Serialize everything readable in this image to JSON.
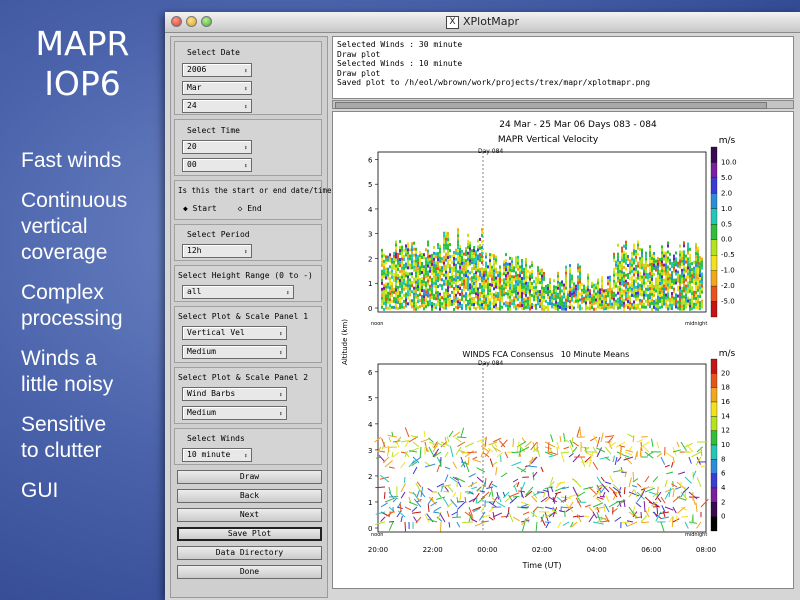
{
  "slide": {
    "title_line1": "MAPR",
    "title_line2": "IOP6",
    "bullets": [
      "Fast winds",
      "Continuous\nvertical\ncoverage",
      "Complex\nprocessing",
      "Winds a\nlittle noisy",
      "Sensitive\nto clutter",
      "GUI"
    ]
  },
  "window": {
    "title": "XPlotMapr",
    "icon": "x-window-icon"
  },
  "panel": {
    "select_date": {
      "label": "Select Date",
      "year": "2006",
      "month": "Mar",
      "day": "24"
    },
    "select_time": {
      "label": "Select Time",
      "hour": "20",
      "minute": "00"
    },
    "start_end": {
      "label": "Is this the start or end date/time?",
      "start": "Start",
      "end": "End",
      "selected": "Start"
    },
    "select_period": {
      "label": "Select Period",
      "value": "12h"
    },
    "height_range": {
      "label": "Select Height Range (0 to -)",
      "value": "all"
    },
    "plot_panel_1": {
      "label": "Select Plot & Scale Panel 1",
      "plot": "Vertical Vel",
      "scale": "Medium"
    },
    "plot_panel_2": {
      "label": "Select Plot & Scale Panel 2",
      "plot": "Wind Barbs",
      "scale": "Medium"
    },
    "select_winds": {
      "label": "Select Winds",
      "value": "10 minute"
    },
    "buttons": {
      "draw": "Draw",
      "back": "Back",
      "next": "Next",
      "save_plot": "Save Plot",
      "data_directory": "Data Directory",
      "done": "Done"
    }
  },
  "log": [
    "Selected Winds : 30 minute",
    "Draw plot",
    "Selected Winds : 10 minute",
    "Draw plot",
    "Saved plot to /h/eol/wbrown/work/projects/trex/mapr/xplotmapr.png"
  ],
  "plot": {
    "header": "24 Mar - 25 Mar 06 Days 083 - 084",
    "day_marker": "Day 084",
    "ylabel": "Altitude (km)",
    "xlabel": "Time (UT)",
    "x_ticks": [
      "20:00",
      "22:00",
      "00:00",
      "02:00",
      "04:00",
      "06:00",
      "08:00"
    ],
    "y_ticks": [
      "0",
      "1",
      "2",
      "3",
      "4",
      "5",
      "6"
    ],
    "panel1": {
      "title": "MAPR Vertical Velocity",
      "unit": "m/s",
      "colorbar": [
        "10.0",
        "5.0",
        "2.0",
        "1.0",
        "0.5",
        "0.0",
        "-0.5",
        "-1.0",
        "-2.0",
        "-5.0"
      ],
      "colors": [
        "#3a0a52",
        "#7a1fa0",
        "#3b3bd6",
        "#2f8cd8",
        "#23c7b6",
        "#2fbf3a",
        "#b5e21f",
        "#f2e21c",
        "#f2a81c",
        "#e8541c",
        "#c41414"
      ],
      "left_marker": "noon",
      "right_marker": "midnight"
    },
    "panel2": {
      "title": "WINDS  FCA Consensus",
      "subtitle": "10 Minute Means",
      "unit": "m/s",
      "colorbar": [
        "20",
        "18",
        "16",
        "14",
        "12",
        "10",
        "8",
        "6",
        "4",
        "2",
        "0"
      ],
      "colors": [
        "#c41414",
        "#e8541c",
        "#f2a81c",
        "#f2e21c",
        "#b5e21f",
        "#2fbf3a",
        "#23c7b6",
        "#2f8cd8",
        "#3b3bd6",
        "#7a1fa0",
        "#3a0a52",
        "#000000"
      ],
      "left_marker": "noon",
      "right_marker": "midnight"
    }
  }
}
